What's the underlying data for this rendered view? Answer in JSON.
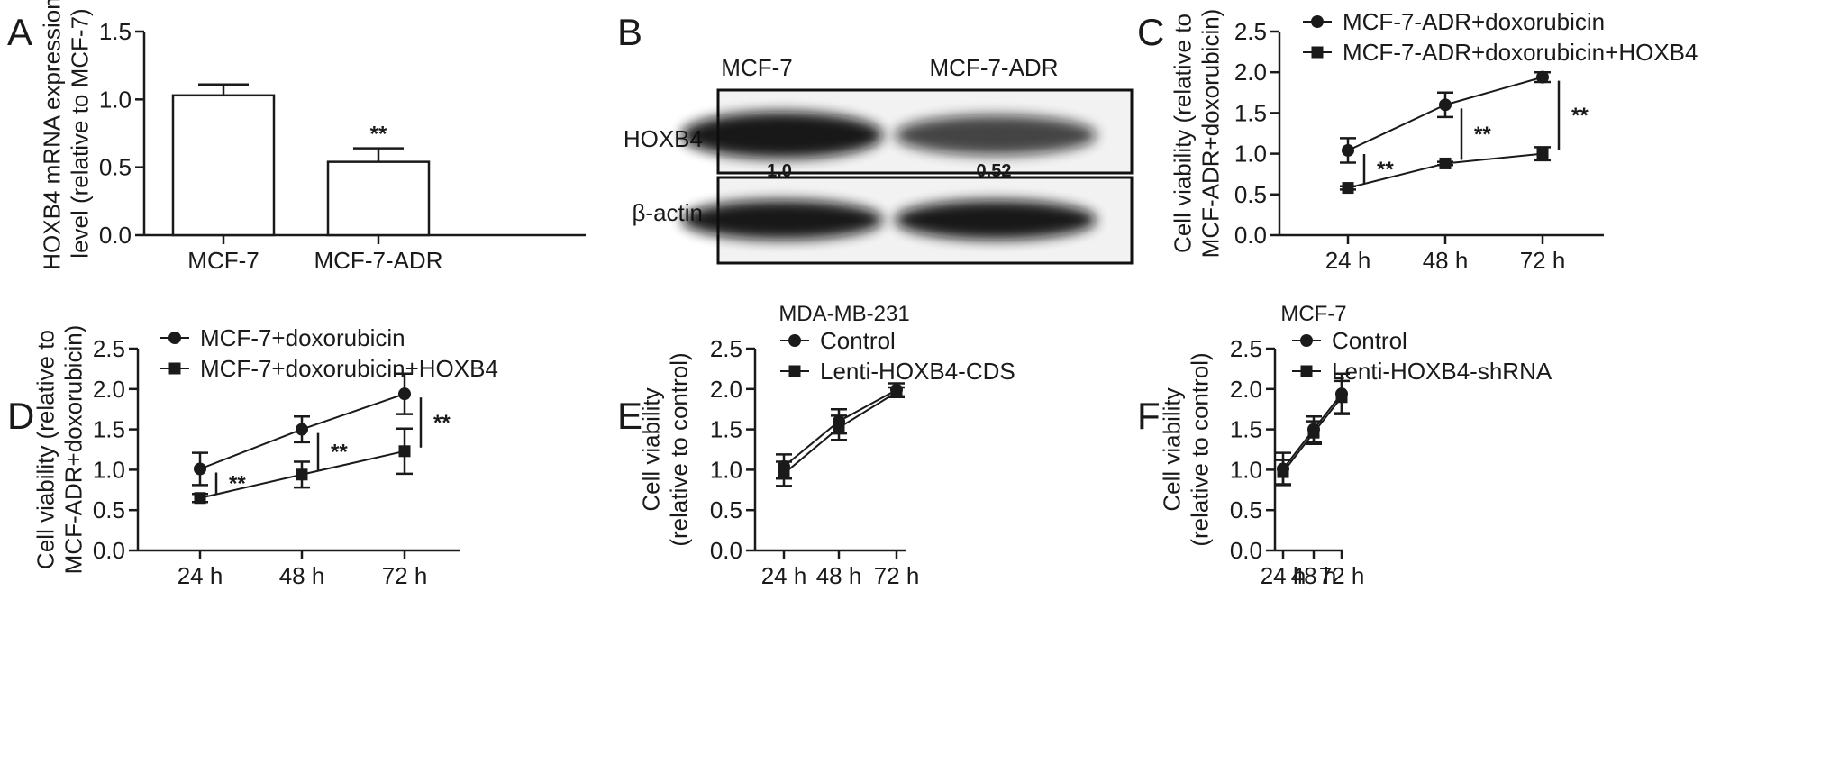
{
  "figure": {
    "panels": [
      {
        "id": "A",
        "letter": "A"
      },
      {
        "id": "B",
        "letter": "B"
      },
      {
        "id": "C",
        "letter": "C"
      },
      {
        "id": "D",
        "letter": "D"
      },
      {
        "id": "E",
        "letter": "E"
      },
      {
        "id": "F",
        "letter": "F"
      }
    ]
  },
  "western_blot": {
    "columns": [
      "MCF-7",
      "MCF-7-ADR"
    ],
    "rows": [
      "HOXB4",
      "β-actin"
    ],
    "ratios": [
      "1.0",
      "0.52"
    ],
    "band_intensity": {
      "HOXB4": [
        1.0,
        0.52
      ],
      "β-actin": [
        1.0,
        1.0
      ]
    }
  },
  "chart_data": [
    {
      "panel": "A",
      "type": "bar",
      "categories": [
        "MCF-7",
        "MCF-7-ADR"
      ],
      "values": [
        1.03,
        0.54
      ],
      "errors": [
        0.08,
        0.1
      ],
      "significance": [
        "",
        "**"
      ],
      "ylabel_lines": [
        "HOXB4 mRNA expression",
        "level (relative to MCF-7)"
      ],
      "ylim": [
        0,
        1.5
      ],
      "yticks": [
        "0.0",
        "0.5",
        "1.0",
        "1.5"
      ],
      "title": ""
    },
    {
      "panel": "C",
      "type": "line",
      "categories": [
        "24 h",
        "48 h",
        "72 h"
      ],
      "series": [
        {
          "name": "MCF-7-ADR+doxorubicin",
          "marker": "circle",
          "values": [
            1.04,
            1.6,
            1.94
          ],
          "errors": [
            0.15,
            0.15,
            0.06
          ]
        },
        {
          "name": "MCF-7-ADR+doxorubicin+HOXB4",
          "marker": "square",
          "values": [
            0.58,
            0.88,
            1.0
          ],
          "errors": [
            0.02,
            0.02,
            0.08
          ]
        }
      ],
      "significance": [
        "**",
        "**",
        "**"
      ],
      "ylabel_lines": [
        "Cell viability (relative to",
        "MCF-ADR+doxorubicin)"
      ],
      "ylim": [
        0,
        2.5
      ],
      "yticks": [
        "0.0",
        "0.5",
        "1.0",
        "1.5",
        "2.0",
        "2.5"
      ],
      "title": ""
    },
    {
      "panel": "D",
      "type": "line",
      "categories": [
        "24 h",
        "48 h",
        "72 h"
      ],
      "series": [
        {
          "name": "MCF-7+doxorubicin",
          "marker": "circle",
          "values": [
            1.01,
            1.5,
            1.94
          ],
          "errors": [
            0.2,
            0.16,
            0.25
          ]
        },
        {
          "name": "MCF-7+doxorubicin+HOXB4",
          "marker": "square",
          "values": [
            0.65,
            0.94,
            1.23
          ],
          "errors": [
            0.05,
            0.16,
            0.28
          ]
        }
      ],
      "significance": [
        "**",
        "**",
        "**"
      ],
      "ylabel_lines": [
        "Cell viability (relative to",
        "MCF-ADR+doxorubicin)"
      ],
      "ylim": [
        0,
        2.5
      ],
      "yticks": [
        "0.0",
        "0.5",
        "1.0",
        "1.5",
        "2.0",
        "2.5"
      ],
      "title": ""
    },
    {
      "panel": "E",
      "type": "line",
      "title": "MDA-MB-231",
      "categories": [
        "24 h",
        "48 h",
        "72 h"
      ],
      "series": [
        {
          "name": "Control",
          "marker": "circle",
          "values": [
            1.04,
            1.6,
            1.99
          ],
          "errors": [
            0.15,
            0.15,
            0.08
          ]
        },
        {
          "name": "Lenti-HOXB4-CDS",
          "marker": "square",
          "values": [
            0.95,
            1.52,
            1.96
          ],
          "errors": [
            0.15,
            0.15,
            0.06
          ]
        }
      ],
      "significance": [
        "",
        "",
        ""
      ],
      "ylabel_lines": [
        "Cell viability",
        "(relative to control)"
      ],
      "ylim": [
        0,
        2.5
      ],
      "yticks": [
        "0.0",
        "0.5",
        "1.0",
        "1.5",
        "2.0",
        "2.5"
      ]
    },
    {
      "panel": "F",
      "type": "line",
      "title": "MCF-7",
      "categories": [
        "24 h",
        "48 h",
        "72 h"
      ],
      "series": [
        {
          "name": "Control",
          "marker": "circle",
          "values": [
            1.01,
            1.5,
            1.94
          ],
          "errors": [
            0.2,
            0.16,
            0.25
          ]
        },
        {
          "name": "Lenti-HOXB4-shRNA",
          "marker": "square",
          "values": [
            0.97,
            1.46,
            1.9
          ],
          "errors": [
            0.15,
            0.14,
            0.2
          ]
        }
      ],
      "significance": [
        "",
        "",
        ""
      ],
      "ylabel_lines": [
        "Cell viability",
        "(relative to control)"
      ],
      "ylim": [
        0,
        2.5
      ],
      "yticks": [
        "0.0",
        "0.5",
        "1.0",
        "1.5",
        "2.0",
        "2.5"
      ]
    }
  ]
}
